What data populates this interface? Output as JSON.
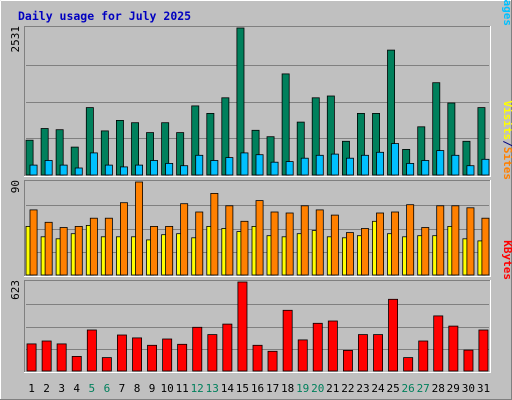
{
  "chart_data": {
    "type": "bar",
    "title": "Daily usage for July 2025",
    "categories": [
      "1",
      "2",
      "3",
      "4",
      "5",
      "6",
      "7",
      "8",
      "9",
      "10",
      "11",
      "12",
      "13",
      "14",
      "15",
      "16",
      "17",
      "18",
      "19",
      "20",
      "21",
      "22",
      "23",
      "24",
      "25",
      "26",
      "27",
      "28",
      "29",
      "30",
      "31"
    ],
    "weekend_days": [
      "5",
      "6",
      "12",
      "13",
      "19",
      "20",
      "26",
      "27"
    ],
    "panels": [
      {
        "name": "pages-files-hits",
        "ymax_label": "2531",
        "ylim": [
          0,
          2531
        ],
        "labels": [
          {
            "text": "Hits",
            "color": "#00805c"
          },
          {
            "text": "/",
            "color": "#000080"
          },
          {
            "text": "Files",
            "color": "#0000ff"
          },
          {
            "text": "/",
            "color": "#000080"
          },
          {
            "text": "Pages",
            "color": "#00c0ff"
          }
        ],
        "series": [
          {
            "name": "Hits",
            "color": "#00805c",
            "values": [
              600,
              800,
              780,
              480,
              1160,
              760,
              940,
              900,
              730,
              900,
              730,
              1190,
              1060,
              1330,
              2531,
              770,
              660,
              1740,
              910,
              1330,
              1360,
              580,
              1060,
              1060,
              2150,
              440,
              830,
              1590,
              1240,
              580,
              1160
            ]
          },
          {
            "name": "Files",
            "color": "#0000ff",
            "values": []
          },
          {
            "name": "Pages",
            "color": "#00c0ff",
            "values": [
              170,
              250,
              170,
              120,
              380,
              170,
              140,
              170,
              250,
              200,
              160,
              340,
              250,
              300,
              380,
              350,
              220,
              230,
              290,
              340,
              360,
              290,
              340,
              390,
              540,
              200,
              250,
              420,
              340,
              160,
              270
            ]
          }
        ]
      },
      {
        "name": "sites-visits",
        "ymax_label": "90",
        "ylim": [
          0,
          90
        ],
        "labels": [
          {
            "text": "Visits",
            "color": "#ffff00"
          },
          {
            "text": "/",
            "color": "#000080"
          },
          {
            "text": "Sites",
            "color": "#ff8000"
          }
        ],
        "series": [
          {
            "name": "Visits",
            "color": "#ffff00",
            "values": [
              47,
              37,
              35,
              40,
              48,
              37,
              37,
              37,
              34,
              39,
              40,
              36,
              47,
              45,
              42,
              47,
              38,
              37,
              40,
              43,
              37,
              36,
              38,
              52,
              40,
              37,
              38,
              38,
              47,
              35,
              33
            ]
          },
          {
            "name": "Sites",
            "color": "#ff8000",
            "values": [
              63,
              51,
              46,
              47,
              55,
              55,
              70,
              90,
              47,
              47,
              69,
              61,
              79,
              67,
              52,
              72,
              61,
              60,
              67,
              63,
              58,
              41,
              45,
              60,
              61,
              68,
              46,
              67,
              67,
              65,
              55
            ]
          }
        ]
      },
      {
        "name": "kbytes",
        "ymax_label": "623",
        "ylim": [
          0,
          623
        ],
        "labels": [
          {
            "text": "KBytes",
            "color": "#ff0000"
          }
        ],
        "series": [
          {
            "name": "KBytes",
            "color": "#ff0000",
            "values": [
              190,
              210,
              190,
              102,
              287,
              94,
              252,
              232,
              180,
              224,
              187,
              306,
              255,
              328,
              623,
              180,
              138,
              425,
              218,
              334,
              350,
              144,
              255,
              255,
              502,
              94,
              210,
              386,
              314,
              146,
              287
            ]
          }
        ]
      }
    ]
  }
}
